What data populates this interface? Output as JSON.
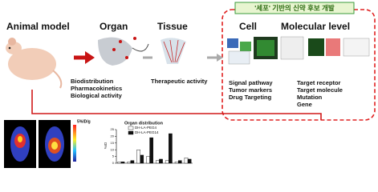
{
  "header": {
    "banner": "'세포' 기반의 신약 후보 개발"
  },
  "stages": [
    {
      "title": "Animal model"
    },
    {
      "title": "Organ",
      "items": [
        "Biodistribution",
        "Pharmacokinetics",
        "Biological activity"
      ]
    },
    {
      "title": "Tissue",
      "items": [
        "Therapeutic activity"
      ]
    },
    {
      "title": "Cell",
      "items": [
        "Signal pathway",
        "Tumor markers",
        "Drug Targeting"
      ]
    },
    {
      "title": "Molecular level",
      "items": [
        "Target receptor",
        "Target molecule",
        "Mutation",
        "Gene"
      ]
    }
  ],
  "imaging": {
    "colorbar_label": "5%ID/g"
  },
  "chart_data": {
    "type": "bar",
    "title": "Organ distribution",
    "y_label": "%ID",
    "categories": [
      null,
      null,
      null,
      null,
      null,
      null,
      null,
      null
    ],
    "series": [
      {
        "name": "DH-LA-PEG4",
        "color": "#ffffff",
        "values": [
          1,
          1,
          10,
          5,
          2,
          2,
          1,
          4
        ]
      },
      {
        "name": "DH-LA-PEG14",
        "color": "#111111",
        "values": [
          1,
          2,
          6,
          19,
          3,
          22,
          2,
          3
        ]
      }
    ],
    "ylim": [
      0,
      25
    ],
    "yticks": [
      0,
      5,
      10,
      15,
      20,
      25
    ]
  }
}
